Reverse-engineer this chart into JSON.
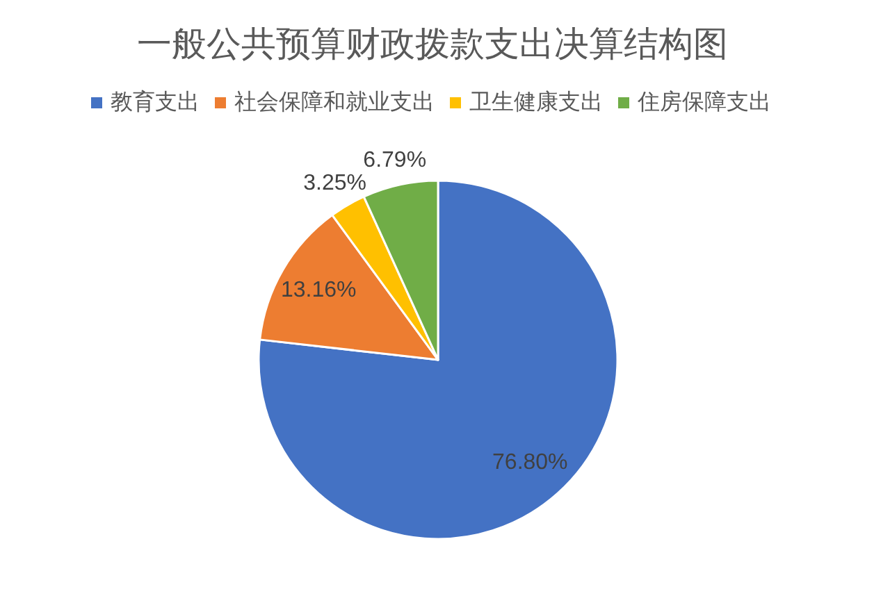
{
  "chart_data": {
    "type": "pie",
    "title": "一般公共预算财政拨款支出决算结构图",
    "categories": [
      "教育支出",
      "社会保障和就业支出",
      "卫生健康支出",
      "住房保障支出"
    ],
    "values": [
      76.8,
      13.16,
      3.25,
      6.79
    ],
    "colors": [
      "#4472c4",
      "#ed7d31",
      "#ffc000",
      "#70ad47"
    ],
    "value_labels": [
      "76.80%",
      "13.16%",
      "3.25%",
      "6.79%"
    ],
    "legend": "top"
  }
}
